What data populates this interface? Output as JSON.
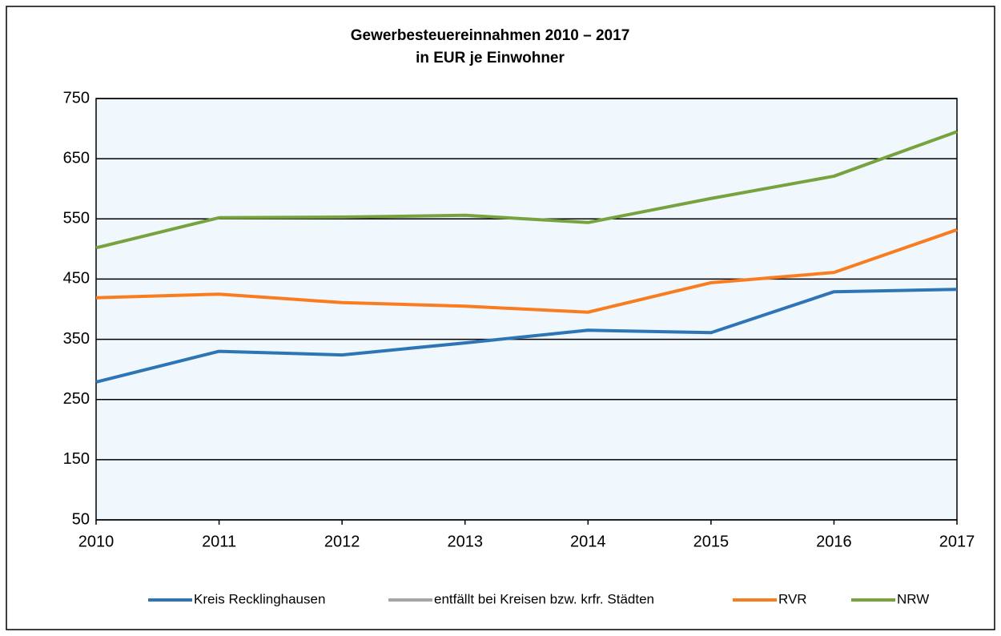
{
  "chart_data": {
    "type": "line",
    "title": "Gewerbesteuereinnahmen 2010 – 2017",
    "subtitle": "in EUR je Einwohner",
    "x": [
      2010,
      2011,
      2012,
      2013,
      2014,
      2015,
      2016,
      2017
    ],
    "xlim": [
      2010,
      2017
    ],
    "xticks": [
      2010,
      2011,
      2012,
      2013,
      2014,
      2015,
      2016,
      2017
    ],
    "ylim": [
      50,
      750
    ],
    "yticks": [
      50,
      150,
      250,
      350,
      450,
      550,
      650,
      750
    ],
    "grid": true,
    "legend": "bottom",
    "series": [
      {
        "name": "Kreis Recklinghausen",
        "color": "#2e75b6",
        "values": [
          279,
          330,
          324,
          344,
          365,
          361,
          429,
          433
        ]
      },
      {
        "name": "entfällt bei Kreisen bzw. krfr. Städten",
        "color": "#a5a5a5",
        "values": [
          null,
          null,
          null,
          null,
          null,
          null,
          null,
          null
        ]
      },
      {
        "name": "RVR",
        "color": "#f97d1e",
        "values": [
          419,
          425,
          411,
          405,
          395,
          444,
          461,
          532
        ]
      },
      {
        "name": "NRW",
        "color": "#77a33f",
        "values": [
          502,
          552,
          553,
          556,
          544,
          584,
          621,
          695
        ]
      }
    ]
  }
}
